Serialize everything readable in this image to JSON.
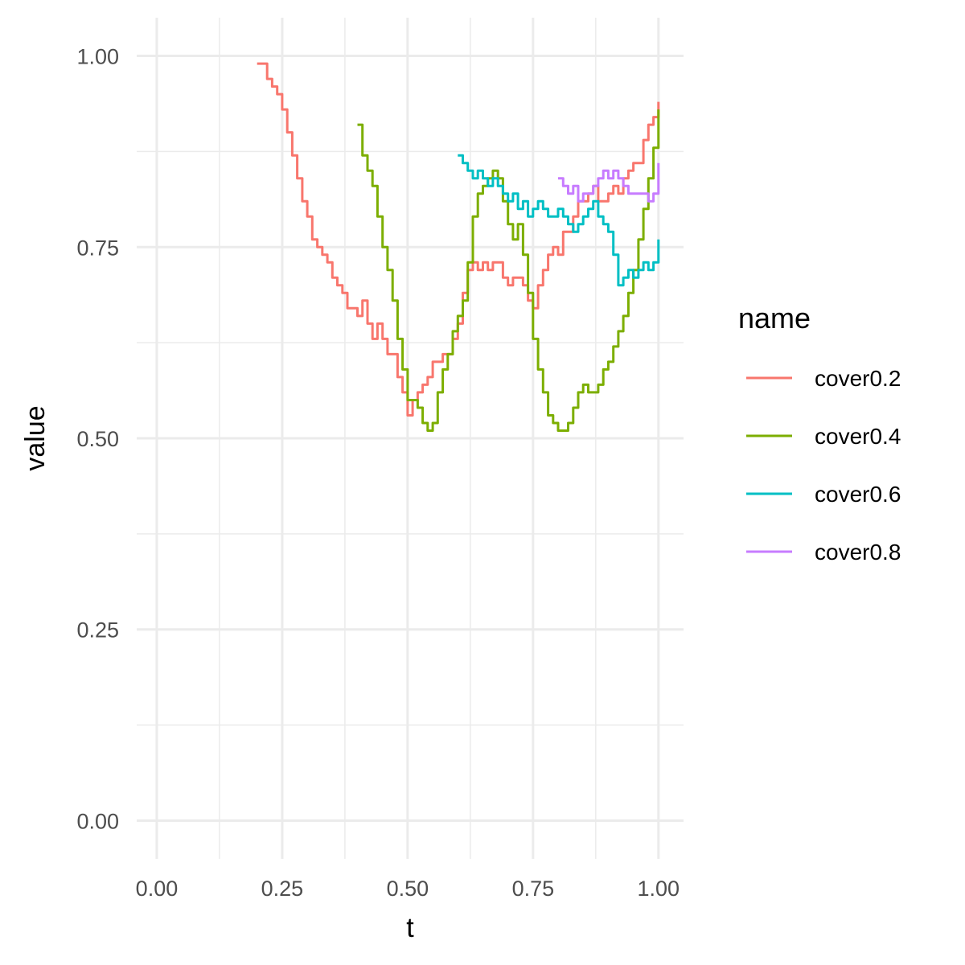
{
  "chart_data": {
    "type": "line",
    "xlabel": "t",
    "ylabel": "value",
    "xlim": [
      -0.04,
      1.05
    ],
    "ylim": [
      -0.05,
      1.05
    ],
    "x_ticks": [
      "0.00",
      "0.25",
      "0.50",
      "0.75",
      "1.00"
    ],
    "y_ticks": [
      "0.00",
      "0.25",
      "0.50",
      "0.75",
      "1.00"
    ],
    "x_tick_values": [
      0,
      0.25,
      0.5,
      0.75,
      1.0
    ],
    "y_tick_values": [
      0,
      0.25,
      0.5,
      0.75,
      1.0
    ],
    "grid": true,
    "legend": {
      "title": "name",
      "position": "right"
    },
    "series": [
      {
        "name": "cover0.2",
        "color": "#f8766d",
        "x": [
          0.2,
          0.21,
          0.22,
          0.23,
          0.24,
          0.25,
          0.26,
          0.27,
          0.28,
          0.29,
          0.3,
          0.31,
          0.32,
          0.33,
          0.34,
          0.35,
          0.36,
          0.37,
          0.38,
          0.39,
          0.4,
          0.41,
          0.42,
          0.43,
          0.44,
          0.45,
          0.46,
          0.47,
          0.48,
          0.49,
          0.5,
          0.51,
          0.52,
          0.53,
          0.54,
          0.55,
          0.56,
          0.57,
          0.58,
          0.59,
          0.6,
          0.61,
          0.62,
          0.63,
          0.64,
          0.65,
          0.66,
          0.67,
          0.68,
          0.69,
          0.7,
          0.71,
          0.72,
          0.73,
          0.74,
          0.75,
          0.76,
          0.77,
          0.78,
          0.79,
          0.8,
          0.81,
          0.82,
          0.83,
          0.84,
          0.85,
          0.86,
          0.87,
          0.88,
          0.89,
          0.9,
          0.91,
          0.92,
          0.93,
          0.94,
          0.95,
          0.96,
          0.97,
          0.98,
          0.99,
          1.0
        ],
        "values": [
          0.99,
          0.99,
          0.97,
          0.96,
          0.95,
          0.93,
          0.9,
          0.87,
          0.84,
          0.81,
          0.79,
          0.76,
          0.75,
          0.74,
          0.73,
          0.71,
          0.7,
          0.69,
          0.67,
          0.67,
          0.66,
          0.68,
          0.65,
          0.63,
          0.65,
          0.63,
          0.61,
          0.61,
          0.58,
          0.56,
          0.53,
          0.55,
          0.56,
          0.57,
          0.58,
          0.6,
          0.6,
          0.61,
          0.61,
          0.63,
          0.65,
          0.69,
          0.72,
          0.73,
          0.72,
          0.73,
          0.72,
          0.73,
          0.73,
          0.71,
          0.7,
          0.71,
          0.71,
          0.7,
          0.68,
          0.67,
          0.7,
          0.72,
          0.74,
          0.75,
          0.74,
          0.77,
          0.77,
          0.79,
          0.81,
          0.81,
          0.82,
          0.83,
          0.81,
          0.81,
          0.82,
          0.83,
          0.82,
          0.84,
          0.85,
          0.86,
          0.86,
          0.89,
          0.91,
          0.92,
          0.94
        ]
      },
      {
        "name": "cover0.4",
        "color": "#7cae00",
        "x": [
          0.4,
          0.41,
          0.42,
          0.43,
          0.44,
          0.45,
          0.46,
          0.47,
          0.48,
          0.49,
          0.5,
          0.51,
          0.52,
          0.53,
          0.54,
          0.55,
          0.56,
          0.57,
          0.58,
          0.59,
          0.6,
          0.61,
          0.62,
          0.63,
          0.64,
          0.65,
          0.66,
          0.67,
          0.68,
          0.69,
          0.7,
          0.71,
          0.72,
          0.73,
          0.74,
          0.75,
          0.76,
          0.77,
          0.78,
          0.79,
          0.8,
          0.81,
          0.82,
          0.83,
          0.84,
          0.85,
          0.86,
          0.87,
          0.88,
          0.89,
          0.9,
          0.91,
          0.92,
          0.93,
          0.94,
          0.95,
          0.96,
          0.97,
          0.98,
          0.99,
          1.0
        ],
        "values": [
          0.91,
          0.87,
          0.85,
          0.83,
          0.79,
          0.75,
          0.72,
          0.68,
          0.63,
          0.59,
          0.55,
          0.55,
          0.54,
          0.52,
          0.51,
          0.52,
          0.56,
          0.59,
          0.61,
          0.64,
          0.66,
          0.68,
          0.73,
          0.79,
          0.82,
          0.83,
          0.84,
          0.85,
          0.84,
          0.81,
          0.78,
          0.76,
          0.78,
          0.74,
          0.69,
          0.63,
          0.59,
          0.56,
          0.53,
          0.52,
          0.51,
          0.51,
          0.52,
          0.54,
          0.56,
          0.57,
          0.56,
          0.56,
          0.57,
          0.59,
          0.6,
          0.62,
          0.64,
          0.66,
          0.69,
          0.72,
          0.76,
          0.8,
          0.84,
          0.88,
          0.93
        ]
      },
      {
        "name": "cover0.6",
        "color": "#00bfc4",
        "x": [
          0.6,
          0.61,
          0.62,
          0.63,
          0.64,
          0.65,
          0.66,
          0.67,
          0.68,
          0.69,
          0.7,
          0.71,
          0.72,
          0.73,
          0.74,
          0.75,
          0.76,
          0.77,
          0.78,
          0.79,
          0.8,
          0.81,
          0.82,
          0.83,
          0.84,
          0.85,
          0.86,
          0.87,
          0.88,
          0.89,
          0.9,
          0.91,
          0.92,
          0.93,
          0.94,
          0.95,
          0.96,
          0.97,
          0.98,
          0.99,
          1.0
        ],
        "values": [
          0.87,
          0.86,
          0.85,
          0.84,
          0.85,
          0.84,
          0.83,
          0.84,
          0.83,
          0.82,
          0.81,
          0.82,
          0.8,
          0.81,
          0.79,
          0.8,
          0.81,
          0.8,
          0.79,
          0.79,
          0.8,
          0.79,
          0.78,
          0.77,
          0.78,
          0.79,
          0.8,
          0.81,
          0.79,
          0.78,
          0.77,
          0.74,
          0.7,
          0.71,
          0.72,
          0.71,
          0.72,
          0.73,
          0.72,
          0.73,
          0.76
        ]
      },
      {
        "name": "cover0.8",
        "color": "#c77cff",
        "x": [
          0.8,
          0.81,
          0.82,
          0.83,
          0.84,
          0.85,
          0.86,
          0.87,
          0.88,
          0.89,
          0.9,
          0.91,
          0.92,
          0.93,
          0.94,
          0.95,
          0.96,
          0.97,
          0.98,
          0.99,
          1.0
        ],
        "values": [
          0.84,
          0.83,
          0.82,
          0.83,
          0.81,
          0.82,
          0.82,
          0.83,
          0.84,
          0.85,
          0.84,
          0.85,
          0.84,
          0.83,
          0.82,
          0.82,
          0.82,
          0.82,
          0.81,
          0.82,
          0.86
        ]
      }
    ]
  }
}
